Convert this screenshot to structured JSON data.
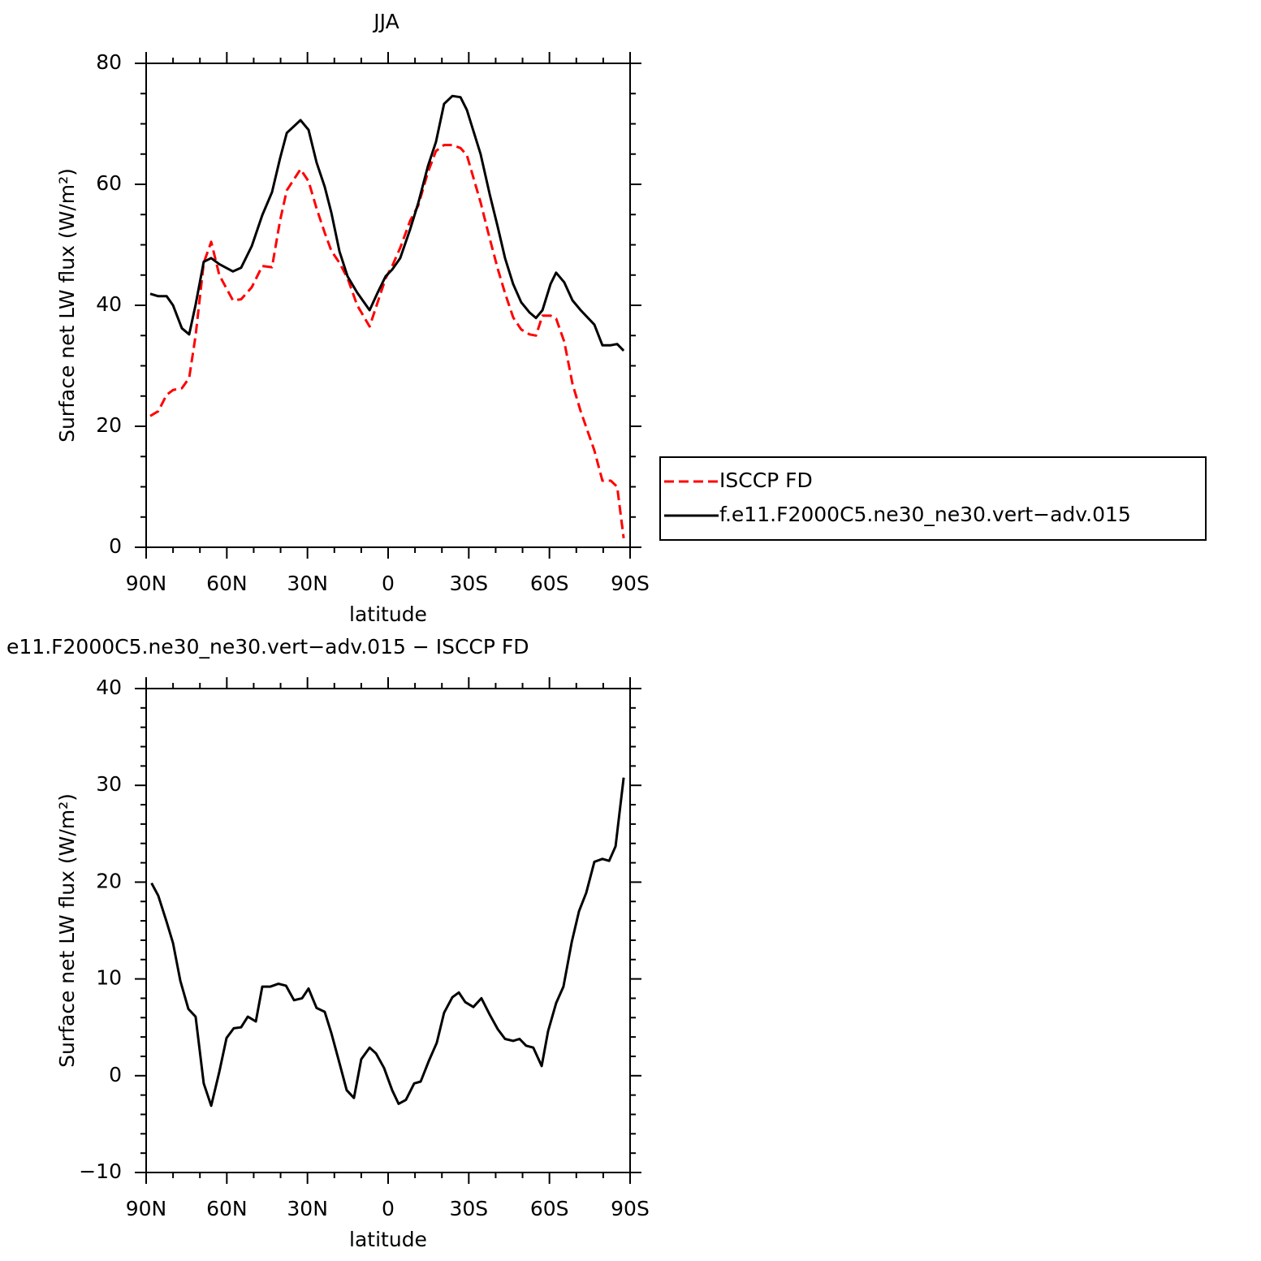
{
  "chart_data": [
    {
      "type": "line",
      "title": "JJA",
      "ylabel": "Surface net LW flux (W/m²)",
      "xlabel": "latitude",
      "xlim": [
        90,
        -90
      ],
      "xticks": [
        {
          "value": 90,
          "label": "90N"
        },
        {
          "value": 60,
          "label": "60N"
        },
        {
          "value": 30,
          "label": "30N"
        },
        0,
        {
          "value": -30,
          "label": "30S"
        },
        {
          "value": -60,
          "label": "60S"
        },
        {
          "value": -90,
          "label": "90S"
        }
      ],
      "xminorticks": [
        80,
        70,
        50,
        40,
        20,
        10,
        -10,
        -20,
        -40,
        -50,
        -70,
        -80
      ],
      "ylim": [
        0,
        80
      ],
      "yticks": [
        0,
        20,
        40,
        60,
        80
      ],
      "yminorticks": [
        5,
        10,
        15,
        25,
        30,
        35,
        45,
        50,
        55,
        65,
        70,
        75
      ],
      "legend": "right",
      "x": [
        88.5,
        85.5,
        82.4,
        80,
        76.7,
        74,
        71.6,
        68.6,
        65.8,
        62.8,
        57.7,
        54.7,
        50.7,
        46.8,
        43.2,
        40.2,
        37.7,
        32.6,
        29.6,
        26.6,
        23.6,
        21.1,
        18.1,
        15.1,
        11.5,
        6.9,
        3.9,
        0.9,
        -1.5,
        -4.5,
        -8.2,
        -11.2,
        -14.8,
        -17.8,
        -20.8,
        -23.9,
        -26.9,
        -29.3,
        -34.4,
        -37.8,
        -40.8,
        -43.5,
        -46.5,
        -49.5,
        -52.6,
        -55,
        -57.4,
        -60.4,
        -62.5,
        -65.5,
        -68.6,
        -71.6,
        -76.7,
        -79.7,
        -82.8,
        -85.2,
        -87.6
      ],
      "series": [
        {
          "name": "ISCCP FD",
          "color": "#ff0000",
          "dash": "dashed",
          "values": [
            21.7,
            22.5,
            25.2,
            26,
            26.3,
            28,
            35,
            47,
            50.5,
            45,
            40.8,
            41,
            43,
            46.5,
            46.3,
            54,
            59,
            62.5,
            60.5,
            56,
            52,
            49,
            47,
            44.5,
            40,
            36.5,
            40.5,
            44.5,
            46.5,
            49.5,
            54,
            56.5,
            62,
            65.5,
            66.5,
            66.5,
            66,
            64.8,
            57,
            51,
            46,
            42,
            38,
            36,
            35.2,
            35,
            38.3,
            38.3,
            37.8,
            34,
            27,
            22.5,
            16,
            11,
            11,
            10,
            1.5
          ]
        },
        {
          "name": "f.e11.F2000C5.ne30_ne30.vert−adv.015",
          "color": "#000000",
          "dash": "solid",
          "values": [
            41.9,
            41.5,
            41.5,
            40,
            36.2,
            35.2,
            40.1,
            47.2,
            47.8,
            46.8,
            45.6,
            46.2,
            49.8,
            54.9,
            58.7,
            64.3,
            68.5,
            70.6,
            69,
            63.6,
            59.6,
            55.3,
            48.9,
            44.8,
            42.1,
            39.2,
            42.1,
            44.8,
            45.9,
            47.8,
            52.6,
            56.9,
            63,
            67,
            73.3,
            74.6,
            74.4,
            72.3,
            65,
            58.3,
            52.9,
            47.8,
            43.5,
            40.5,
            38.8,
            37.9,
            39.2,
            43.5,
            45.4,
            43.8,
            40.8,
            39.2,
            36.8,
            33.4,
            33.4,
            33.6,
            32.5
          ]
        }
      ]
    },
    {
      "type": "line",
      "title": "e11.F2000C5.ne30_ne30.vert−adv.015 − ISCCP FD",
      "ylabel": "Surface net LW flux (W/m²)",
      "xlabel": "latitude",
      "xlim": [
        90,
        -90
      ],
      "xticks": [
        {
          "value": 90,
          "label": "90N"
        },
        {
          "value": 60,
          "label": "60N"
        },
        {
          "value": 30,
          "label": "30N"
        },
        0,
        {
          "value": -30,
          "label": "30S"
        },
        {
          "value": -60,
          "label": "60S"
        },
        {
          "value": -90,
          "label": "90S"
        }
      ],
      "xminorticks": [
        80,
        70,
        50,
        40,
        20,
        10,
        -10,
        -20,
        -40,
        -50,
        -70,
        -80
      ],
      "ylim": [
        -10,
        40
      ],
      "yticks": [
        {
          "value": -10,
          "label": "−10"
        },
        0,
        10,
        20,
        30,
        40
      ],
      "yminorticks": [
        -8,
        -6,
        -4,
        -2,
        2,
        4,
        6,
        8,
        12,
        14,
        16,
        18,
        22,
        24,
        26,
        28,
        32,
        34,
        36,
        38
      ],
      "color": "#000000",
      "x": [
        88,
        85.5,
        82.4,
        80,
        77.3,
        74.3,
        71.6,
        68.6,
        65.8,
        62.8,
        60.1,
        57.4,
        54.7,
        52.2,
        49.2,
        46.8,
        43.8,
        40.8,
        38,
        35,
        32,
        29.6,
        26.6,
        23.6,
        21.1,
        18.1,
        15.4,
        12.7,
        10,
        6.9,
        4.5,
        1.5,
        -1.5,
        -3.9,
        -6.6,
        -9.7,
        -12.1,
        -15.1,
        -18.1,
        -20.8,
        -23.9,
        -26.3,
        -28.7,
        -31.7,
        -34.7,
        -37.8,
        -40.8,
        -43.5,
        -46.5,
        -48.9,
        -51.3,
        -54,
        -57.1,
        -59.5,
        -62.5,
        -65.2,
        -68.3,
        -71,
        -73.7,
        -76.7,
        -79.7,
        -82.2,
        -84.6,
        -87.6
      ],
      "values": [
        19.9,
        18.6,
        15.9,
        13.7,
        9.8,
        6.9,
        6.1,
        -0.8,
        -3.1,
        0.4,
        3.9,
        4.9,
        5,
        6.1,
        5.6,
        9.2,
        9.2,
        9.5,
        9.3,
        7.8,
        8,
        9,
        7,
        6.6,
        4.4,
        1.3,
        -1.5,
        -2.3,
        1.7,
        2.9,
        2.3,
        0.8,
        -1.5,
        -2.9,
        -2.5,
        -0.8,
        -0.6,
        1.5,
        3.4,
        6.5,
        8.1,
        8.6,
        7.6,
        7.1,
        8,
        6.3,
        4.8,
        3.8,
        3.6,
        3.8,
        3.1,
        2.9,
        1,
        4.6,
        7.5,
        9.2,
        13.8,
        17,
        18.9,
        22.1,
        22.4,
        22.2,
        23.7,
        30.8
      ]
    }
  ]
}
